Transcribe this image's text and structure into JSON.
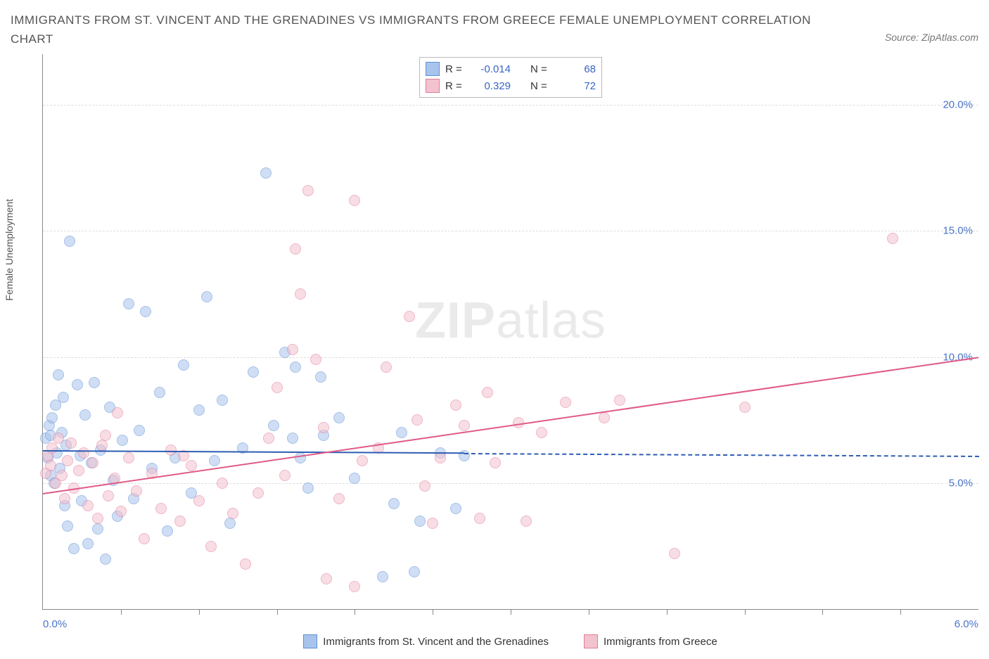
{
  "header": {
    "title": "IMMIGRANTS FROM ST. VINCENT AND THE GRENADINES VS IMMIGRANTS FROM GREECE FEMALE UNEMPLOYMENT CORRELATION CHART",
    "source_prefix": "Source: ",
    "source_name": "ZipAtlas.com"
  },
  "ylabel": "Female Unemployment",
  "watermark": {
    "bold": "ZIP",
    "light": "atlas"
  },
  "chart": {
    "type": "scatter",
    "background_color": "#ffffff",
    "grid_color": "#dddddd",
    "axis_color": "#888888",
    "tick_label_color": "#4a74c9",
    "x": {
      "min": 0.0,
      "max": 6.0,
      "ticks": [
        0.5,
        1.0,
        1.5,
        2.0,
        2.5,
        3.0,
        3.5,
        4.0,
        4.5,
        5.0,
        5.5
      ],
      "end_labels": [
        "0.0%",
        "6.0%"
      ]
    },
    "y": {
      "min": 0.0,
      "max": 22.0,
      "gridlines": [
        5.0,
        10.0,
        15.0,
        20.0
      ],
      "labels": [
        "5.0%",
        "10.0%",
        "15.0%",
        "20.0%"
      ]
    },
    "marker_radius": 8,
    "marker_opacity": 0.55,
    "series": [
      {
        "id": "svg_series",
        "label": "Immigrants from St. Vincent and the Grenadines",
        "fill": "#a9c4ec",
        "stroke": "#5e8fd6",
        "R_label": "R =",
        "R_value": "-0.014",
        "N_label": "N =",
        "N_value": "68",
        "trend": {
          "y_at_xmin": 6.3,
          "y_at_xmax": 6.1,
          "solid_until_x": 2.7,
          "color": "#2e5db3"
        },
        "points": [
          [
            0.02,
            6.8
          ],
          [
            0.03,
            6.0
          ],
          [
            0.04,
            7.3
          ],
          [
            0.05,
            5.3
          ],
          [
            0.05,
            6.9
          ],
          [
            0.06,
            7.6
          ],
          [
            0.07,
            5.0
          ],
          [
            0.08,
            8.1
          ],
          [
            0.09,
            6.2
          ],
          [
            0.1,
            9.3
          ],
          [
            0.11,
            5.6
          ],
          [
            0.12,
            7.0
          ],
          [
            0.13,
            8.4
          ],
          [
            0.14,
            4.1
          ],
          [
            0.15,
            6.5
          ],
          [
            0.16,
            3.3
          ],
          [
            0.17,
            14.6
          ],
          [
            0.2,
            2.4
          ],
          [
            0.22,
            8.9
          ],
          [
            0.24,
            6.1
          ],
          [
            0.25,
            4.3
          ],
          [
            0.27,
            7.7
          ],
          [
            0.29,
            2.6
          ],
          [
            0.31,
            5.8
          ],
          [
            0.33,
            9.0
          ],
          [
            0.35,
            3.2
          ],
          [
            0.37,
            6.3
          ],
          [
            0.4,
            2.0
          ],
          [
            0.43,
            8.0
          ],
          [
            0.45,
            5.1
          ],
          [
            0.48,
            3.7
          ],
          [
            0.51,
            6.7
          ],
          [
            0.55,
            12.1
          ],
          [
            0.58,
            4.4
          ],
          [
            0.62,
            7.1
          ],
          [
            0.66,
            11.8
          ],
          [
            0.7,
            5.6
          ],
          [
            0.75,
            8.6
          ],
          [
            0.8,
            3.1
          ],
          [
            0.85,
            6.0
          ],
          [
            0.9,
            9.7
          ],
          [
            0.95,
            4.6
          ],
          [
            1.0,
            7.9
          ],
          [
            1.05,
            12.4
          ],
          [
            1.1,
            5.9
          ],
          [
            1.15,
            8.3
          ],
          [
            1.2,
            3.4
          ],
          [
            1.28,
            6.4
          ],
          [
            1.35,
            9.4
          ],
          [
            1.43,
            17.3
          ],
          [
            1.48,
            7.3
          ],
          [
            1.55,
            10.2
          ],
          [
            1.6,
            6.8
          ],
          [
            1.62,
            9.6
          ],
          [
            1.65,
            6.0
          ],
          [
            1.7,
            4.8
          ],
          [
            1.78,
            9.2
          ],
          [
            1.8,
            6.9
          ],
          [
            1.9,
            7.6
          ],
          [
            2.0,
            5.2
          ],
          [
            2.18,
            1.3
          ],
          [
            2.25,
            4.2
          ],
          [
            2.3,
            7.0
          ],
          [
            2.38,
            1.5
          ],
          [
            2.42,
            3.5
          ],
          [
            2.55,
            6.2
          ],
          [
            2.65,
            4.0
          ],
          [
            2.7,
            6.1
          ]
        ]
      },
      {
        "id": "greece_series",
        "label": "Immigrants from Greece",
        "fill": "#f3c2cf",
        "stroke": "#e17c9b",
        "R_label": "R =",
        "R_value": "0.329",
        "N_label": "N =",
        "N_value": "72",
        "trend": {
          "y_at_xmin": 4.6,
          "y_at_xmax": 10.0,
          "solid_until_x": 6.0,
          "color": "#e05a87"
        },
        "points": [
          [
            0.02,
            5.4
          ],
          [
            0.03,
            6.1
          ],
          [
            0.05,
            5.7
          ],
          [
            0.06,
            6.4
          ],
          [
            0.08,
            5.0
          ],
          [
            0.1,
            6.8
          ],
          [
            0.12,
            5.3
          ],
          [
            0.14,
            4.4
          ],
          [
            0.16,
            5.9
          ],
          [
            0.18,
            6.6
          ],
          [
            0.2,
            4.8
          ],
          [
            0.23,
            5.5
          ],
          [
            0.26,
            6.2
          ],
          [
            0.29,
            4.1
          ],
          [
            0.32,
            5.8
          ],
          [
            0.35,
            3.6
          ],
          [
            0.38,
            6.5
          ],
          [
            0.42,
            4.5
          ],
          [
            0.46,
            5.2
          ],
          [
            0.5,
            3.9
          ],
          [
            0.55,
            6.0
          ],
          [
            0.6,
            4.7
          ],
          [
            0.65,
            2.8
          ],
          [
            0.7,
            5.4
          ],
          [
            0.76,
            4.0
          ],
          [
            0.82,
            6.3
          ],
          [
            0.88,
            3.5
          ],
          [
            0.95,
            5.7
          ],
          [
            1.0,
            4.3
          ],
          [
            1.08,
            2.5
          ],
          [
            1.15,
            5.0
          ],
          [
            1.22,
            3.8
          ],
          [
            1.3,
            1.8
          ],
          [
            1.38,
            4.6
          ],
          [
            1.45,
            6.8
          ],
          [
            1.55,
            5.3
          ],
          [
            1.6,
            10.3
          ],
          [
            1.62,
            14.3
          ],
          [
            1.65,
            12.5
          ],
          [
            1.7,
            16.6
          ],
          [
            1.75,
            9.9
          ],
          [
            1.8,
            7.2
          ],
          [
            1.82,
            1.2
          ],
          [
            1.9,
            4.4
          ],
          [
            2.0,
            16.2
          ],
          [
            2.0,
            0.9
          ],
          [
            2.05,
            5.9
          ],
          [
            2.2,
            9.6
          ],
          [
            2.35,
            11.6
          ],
          [
            2.4,
            7.5
          ],
          [
            2.5,
            3.4
          ],
          [
            2.55,
            6.0
          ],
          [
            2.65,
            8.1
          ],
          [
            2.7,
            7.3
          ],
          [
            2.8,
            3.6
          ],
          [
            2.85,
            8.6
          ],
          [
            2.9,
            5.8
          ],
          [
            3.05,
            7.4
          ],
          [
            3.1,
            3.5
          ],
          [
            3.2,
            7.0
          ],
          [
            3.35,
            8.2
          ],
          [
            3.6,
            7.6
          ],
          [
            3.7,
            8.3
          ],
          [
            4.05,
            2.2
          ],
          [
            4.5,
            8.0
          ],
          [
            5.45,
            14.7
          ],
          [
            0.4,
            6.9
          ],
          [
            0.48,
            7.8
          ],
          [
            0.9,
            6.1
          ],
          [
            1.5,
            8.8
          ],
          [
            2.15,
            6.4
          ],
          [
            2.45,
            4.9
          ]
        ]
      }
    ]
  },
  "legend_bottom": [
    {
      "swatch_fill": "#a9c4ec",
      "swatch_stroke": "#5e8fd6",
      "label": "Immigrants from St. Vincent and the Grenadines"
    },
    {
      "swatch_fill": "#f3c2cf",
      "swatch_stroke": "#e17c9b",
      "label": "Immigrants from Greece"
    }
  ]
}
